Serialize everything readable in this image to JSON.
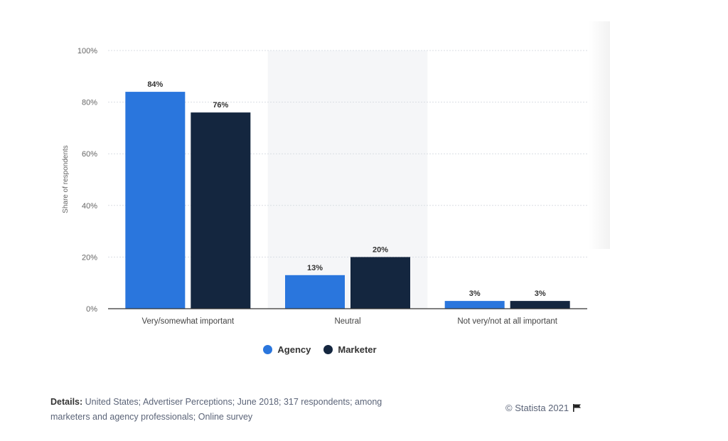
{
  "chart_data": {
    "type": "bar",
    "categories": [
      "Very/somewhat important",
      "Neutral",
      "Not very/not at all important"
    ],
    "series": [
      {
        "name": "Agency",
        "values": [
          84,
          13,
          3
        ],
        "color": "#2a76dd"
      },
      {
        "name": "Marketer",
        "values": [
          76,
          20,
          3
        ],
        "color": "#14263f"
      }
    ],
    "value_labels": [
      [
        "84%",
        "13%",
        "3%"
      ],
      [
        "76%",
        "20%",
        "3%"
      ]
    ],
    "ylabel": "Share of respondents",
    "ylim": [
      0,
      100
    ],
    "yticks": [
      "0%",
      "20%",
      "40%",
      "60%",
      "80%",
      "100%"
    ],
    "grid": true,
    "legend_position": "bottom",
    "highlighted_category": "Neutral"
  },
  "footer": {
    "details_label": "Details:",
    "details_text": "United States; Advertiser Perceptions; June 2018; 317 respondents; among marketers and agency professionals; Online survey",
    "copyright": "© Statista 2021"
  }
}
